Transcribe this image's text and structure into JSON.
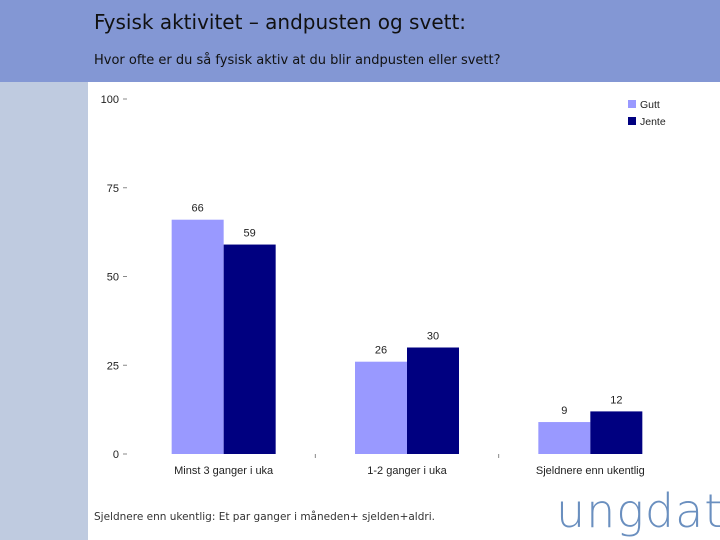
{
  "slide": {
    "title": "Fysisk aktivitet – andpusten og svett:",
    "subtitle": "Hvor ofte er du så fysisk aktiv at du blir andpusten eller svett?",
    "footnote": "Sjeldnere enn ukentlig: Et par ganger i måneden+ sjelden+aldri.",
    "logo_text": "ungdata"
  },
  "colors": {
    "header_bg": "#8397d4",
    "left_band": "#bfcbe0",
    "gutt": "#9999ff",
    "jente": "#000080"
  },
  "chart_data": {
    "type": "bar",
    "title": "",
    "xlabel": "",
    "ylabel": "",
    "ylim": [
      0,
      100
    ],
    "yticks": [
      0,
      25,
      50,
      75,
      100
    ],
    "categories": [
      "Minst 3 ganger i uka",
      "1-2 ganger i uka",
      "Sjeldnere enn ukentlig"
    ],
    "series": [
      {
        "name": "Gutt",
        "values": [
          66,
          26,
          9
        ],
        "color": "#9999ff"
      },
      {
        "name": "Jente",
        "values": [
          59,
          30,
          12
        ],
        "color": "#000080"
      }
    ],
    "legend_position": "top-right",
    "data_labels": true,
    "grid": false
  }
}
